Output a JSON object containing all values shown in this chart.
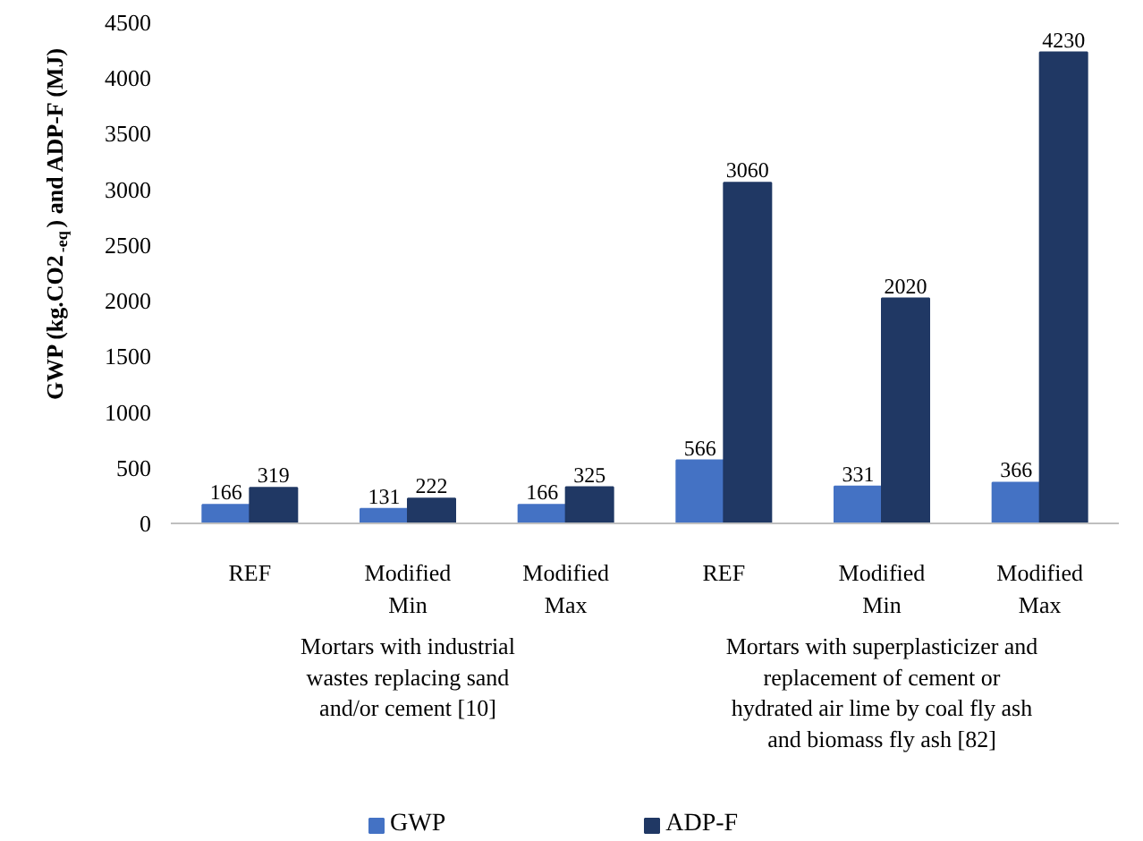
{
  "chart_data": {
    "type": "bar",
    "ylabel": "GWP (kg.CO2$_{-eq}$) and ADP-F (MJ)",
    "categories": [
      "REF",
      "Modified\nMin",
      "Modified\nMax",
      "REF",
      "Modified\nMin",
      "Modified\nMax"
    ],
    "series": [
      {
        "name": "GWP",
        "color": "#4472c4",
        "values": [
          166,
          131,
          166,
          566,
          331,
          366
        ]
      },
      {
        "name": "ADP-F",
        "color": "#203864",
        "values": [
          319,
          222,
          325,
          3060,
          2020,
          4230
        ]
      }
    ],
    "ylim": [
      0,
      4500
    ],
    "yticks": [
      0,
      500,
      1000,
      1500,
      2000,
      2500,
      3000,
      3500,
      4000,
      4500
    ],
    "data_labels": true,
    "grid": false,
    "legend": "bottom",
    "annotations": [
      "Mortars with industrial\nwastes replacing sand\nand/or cement [10]",
      "Mortars with superplasticizer and\nreplacement of cement or\nhydrated air lime by coal fly ash\nand biomass fly ash [82]"
    ]
  }
}
